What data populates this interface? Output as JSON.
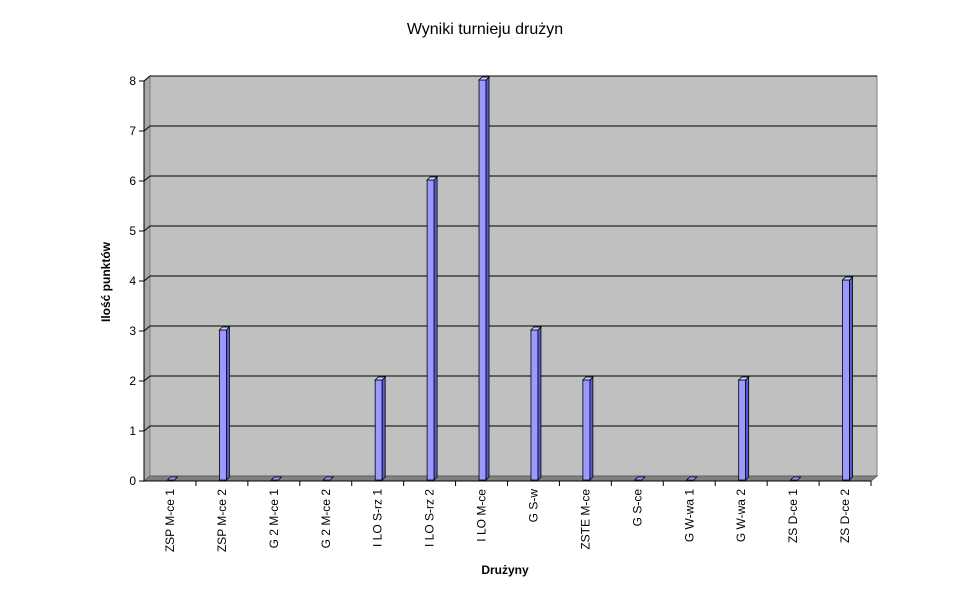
{
  "chart_data": {
    "type": "bar",
    "title": "Wyniki turnieju drużyn",
    "xlabel": "Drużyny",
    "ylabel": "Ilość punktów",
    "ylim": [
      0,
      8
    ],
    "yticks": [
      "0",
      "1",
      "2",
      "3",
      "4",
      "5",
      "6",
      "7",
      "8"
    ],
    "grid": true,
    "categories": [
      "ZSP M-ce 1",
      "ZSP M-ce 2",
      "G 2 M-ce 1",
      "G 2 M-ce 2",
      "I LO S-rz 1",
      "I LO S-rz 2",
      "I LO M-ce",
      "G S-w",
      "ZSTE M-ce",
      "G S-ce",
      "G W-wa 1",
      "G W-wa 2",
      "ZS D-ce 1",
      "ZS D-ce 2"
    ],
    "values": [
      0,
      3,
      0,
      0,
      2,
      6,
      8,
      3,
      2,
      0,
      0,
      2,
      0,
      4
    ],
    "colors": {
      "plot_background": "#c0c0c0",
      "bar_face": "#9999ff",
      "bar_side": "#5a5ad2",
      "bar_top": "#c8c8ff",
      "floor": "#808080",
      "gridline": "#000000"
    }
  }
}
